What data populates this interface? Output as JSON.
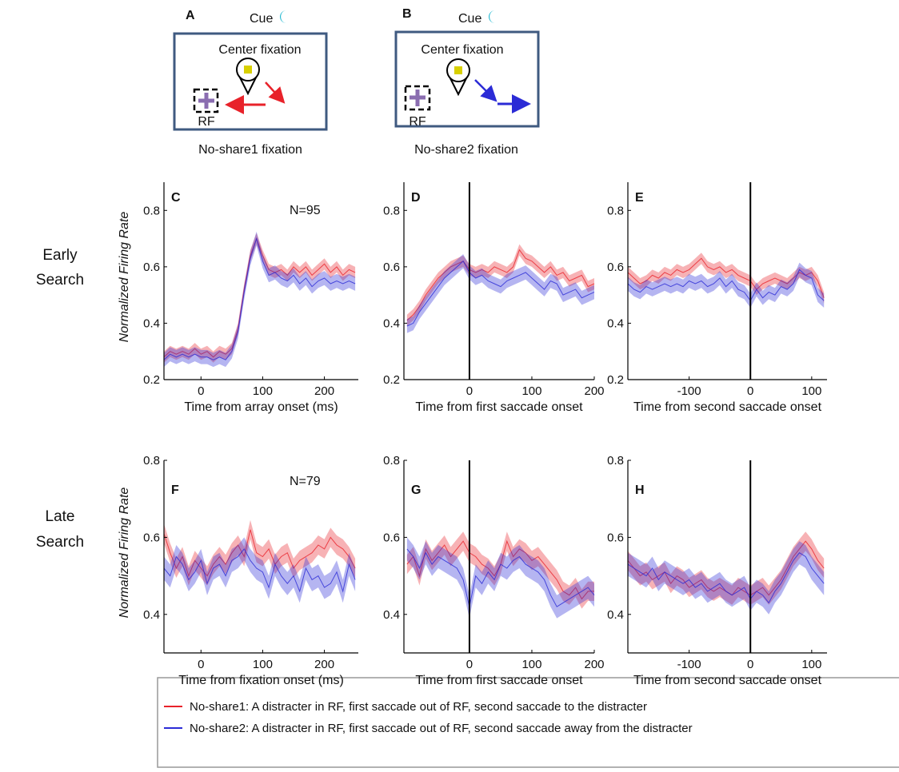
{
  "diagrams": [
    {
      "label": "A",
      "cue": "Cue",
      "center": "Center fixation",
      "rf": "RF",
      "caption": "No-share1 fixation"
    },
    {
      "label": "B",
      "cue": "Cue",
      "center": "Center fixation",
      "rf": "RF",
      "caption": "No-share2 fixation"
    }
  ],
  "row_labels": [
    [
      "Early",
      "Search"
    ],
    [
      "Late",
      "Search"
    ]
  ],
  "legend": [
    {
      "name": "No-share1: A distracter in RF, first saccade out of RF, second saccade to the distracter",
      "color": "#e8222a"
    },
    {
      "name": "No-share2: A distracter in RF, first saccade out of RF, second saccade away from the distracter",
      "color": "#2b2bd6"
    }
  ],
  "chart_data": [
    {
      "type": "line",
      "panel_label": "C",
      "annotation": "N=95",
      "ylabel": "Normalized Firing Rate",
      "xlabel": "Time from array onset (ms)",
      "xlim": [
        -60,
        255
      ],
      "ylim": [
        0.2,
        0.9
      ],
      "xticks": [
        0,
        100,
        200
      ],
      "yticks": [
        0.2,
        0.4,
        0.6,
        0.8
      ],
      "zero_line": false,
      "x": [
        -60,
        -50,
        -40,
        -30,
        -20,
        -10,
        0,
        10,
        20,
        30,
        40,
        50,
        60,
        70,
        80,
        90,
        100,
        110,
        120,
        130,
        140,
        150,
        160,
        170,
        180,
        190,
        200,
        210,
        220,
        230,
        240,
        250
      ],
      "series": [
        {
          "color": "#e8222a",
          "error": 0.02,
          "values": [
            0.28,
            0.3,
            0.29,
            0.3,
            0.29,
            0.31,
            0.29,
            0.3,
            0.28,
            0.3,
            0.29,
            0.31,
            0.38,
            0.52,
            0.64,
            0.7,
            0.64,
            0.59,
            0.58,
            0.59,
            0.57,
            0.6,
            0.58,
            0.6,
            0.57,
            0.59,
            0.61,
            0.58,
            0.6,
            0.57,
            0.59,
            0.58
          ]
        },
        {
          "color": "#2b2bd6",
          "error": 0.025,
          "values": [
            0.27,
            0.29,
            0.28,
            0.29,
            0.28,
            0.29,
            0.28,
            0.28,
            0.27,
            0.28,
            0.27,
            0.3,
            0.37,
            0.51,
            0.63,
            0.7,
            0.62,
            0.57,
            0.58,
            0.56,
            0.55,
            0.57,
            0.54,
            0.56,
            0.53,
            0.55,
            0.56,
            0.54,
            0.55,
            0.54,
            0.55,
            0.54
          ]
        }
      ]
    },
    {
      "type": "line",
      "panel_label": "D",
      "xlabel": "Time from first saccade onset",
      "xlim": [
        -105,
        200
      ],
      "ylim": [
        0.2,
        0.9
      ],
      "xticks": [
        0,
        100,
        200
      ],
      "yticks": [
        0.2,
        0.4,
        0.6,
        0.8
      ],
      "zero_line": true,
      "x": [
        -100,
        -90,
        -80,
        -70,
        -60,
        -50,
        -40,
        -30,
        -20,
        -10,
        0,
        10,
        20,
        30,
        40,
        50,
        60,
        70,
        80,
        90,
        100,
        110,
        120,
        130,
        140,
        150,
        160,
        170,
        180,
        190,
        200
      ],
      "series": [
        {
          "color": "#e8222a",
          "error": 0.02,
          "values": [
            0.41,
            0.43,
            0.46,
            0.5,
            0.53,
            0.56,
            0.58,
            0.6,
            0.61,
            0.62,
            0.59,
            0.58,
            0.59,
            0.58,
            0.6,
            0.59,
            0.58,
            0.6,
            0.66,
            0.63,
            0.62,
            0.6,
            0.58,
            0.6,
            0.57,
            0.58,
            0.55,
            0.56,
            0.57,
            0.53,
            0.54
          ]
        },
        {
          "color": "#2b2bd6",
          "error": 0.025,
          "values": [
            0.39,
            0.4,
            0.44,
            0.47,
            0.5,
            0.53,
            0.56,
            0.58,
            0.6,
            0.62,
            0.58,
            0.56,
            0.57,
            0.55,
            0.54,
            0.53,
            0.55,
            0.56,
            0.57,
            0.58,
            0.56,
            0.54,
            0.52,
            0.55,
            0.54,
            0.5,
            0.51,
            0.52,
            0.49,
            0.5,
            0.51
          ]
        }
      ]
    },
    {
      "type": "line",
      "panel_label": "E",
      "xlabel": "Time from second saccade onset",
      "xlim": [
        -200,
        125
      ],
      "ylim": [
        0.2,
        0.9
      ],
      "xticks": [
        -100,
        0,
        100
      ],
      "yticks": [
        0.2,
        0.4,
        0.6,
        0.8
      ],
      "zero_line": true,
      "x": [
        -200,
        -190,
        -180,
        -170,
        -160,
        -150,
        -140,
        -130,
        -120,
        -110,
        -100,
        -90,
        -80,
        -70,
        -60,
        -50,
        -40,
        -30,
        -20,
        -10,
        0,
        10,
        20,
        30,
        40,
        50,
        60,
        70,
        80,
        90,
        100,
        110,
        120
      ],
      "series": [
        {
          "color": "#e8222a",
          "error": 0.02,
          "values": [
            0.58,
            0.56,
            0.54,
            0.55,
            0.57,
            0.56,
            0.58,
            0.57,
            0.59,
            0.58,
            0.59,
            0.61,
            0.63,
            0.6,
            0.59,
            0.6,
            0.58,
            0.59,
            0.57,
            0.56,
            0.55,
            0.52,
            0.54,
            0.55,
            0.56,
            0.55,
            0.54,
            0.56,
            0.58,
            0.57,
            0.58,
            0.55,
            0.49
          ]
        },
        {
          "color": "#2b2bd6",
          "error": 0.025,
          "values": [
            0.54,
            0.52,
            0.51,
            0.53,
            0.52,
            0.53,
            0.54,
            0.53,
            0.54,
            0.53,
            0.55,
            0.54,
            0.55,
            0.53,
            0.54,
            0.56,
            0.53,
            0.55,
            0.52,
            0.51,
            0.48,
            0.52,
            0.49,
            0.51,
            0.5,
            0.53,
            0.52,
            0.54,
            0.59,
            0.57,
            0.56,
            0.5,
            0.48
          ]
        }
      ]
    },
    {
      "type": "line",
      "panel_label": "F",
      "annotation": "N=79",
      "ylabel": "Normalized Firing Rate",
      "xlabel": "Time from fixation onset (ms)",
      "xlim": [
        -60,
        255
      ],
      "ylim": [
        0.3,
        0.8
      ],
      "xticks": [
        0,
        100,
        200
      ],
      "yticks": [
        0.4,
        0.6,
        0.8
      ],
      "zero_line": false,
      "x": [
        -60,
        -50,
        -40,
        -30,
        -20,
        -10,
        0,
        10,
        20,
        30,
        40,
        50,
        60,
        70,
        80,
        90,
        100,
        110,
        120,
        130,
        140,
        150,
        160,
        170,
        180,
        190,
        200,
        210,
        220,
        230,
        240,
        250
      ],
      "series": [
        {
          "color": "#e8222a",
          "error": 0.025,
          "values": [
            0.61,
            0.56,
            0.52,
            0.55,
            0.5,
            0.54,
            0.52,
            0.5,
            0.53,
            0.55,
            0.53,
            0.56,
            0.58,
            0.55,
            0.62,
            0.56,
            0.55,
            0.57,
            0.53,
            0.55,
            0.56,
            0.52,
            0.54,
            0.55,
            0.56,
            0.58,
            0.57,
            0.6,
            0.58,
            0.57,
            0.55,
            0.52
          ]
        },
        {
          "color": "#2b2bd6",
          "error": 0.03,
          "values": [
            0.52,
            0.5,
            0.55,
            0.53,
            0.49,
            0.51,
            0.54,
            0.48,
            0.52,
            0.53,
            0.5,
            0.54,
            0.55,
            0.57,
            0.54,
            0.52,
            0.51,
            0.47,
            0.53,
            0.5,
            0.48,
            0.5,
            0.46,
            0.52,
            0.49,
            0.5,
            0.47,
            0.48,
            0.51,
            0.46,
            0.53,
            0.49
          ]
        }
      ]
    },
    {
      "type": "line",
      "panel_label": "G",
      "xlabel": "Time from first saccade onset",
      "xlim": [
        -105,
        200
      ],
      "ylim": [
        0.3,
        0.8
      ],
      "xticks": [
        0,
        100,
        200
      ],
      "yticks": [
        0.4,
        0.6,
        0.8
      ],
      "zero_line": true,
      "x": [
        -100,
        -90,
        -80,
        -70,
        -60,
        -50,
        -40,
        -30,
        -20,
        -10,
        0,
        10,
        20,
        30,
        40,
        50,
        60,
        70,
        80,
        90,
        100,
        110,
        120,
        130,
        140,
        150,
        160,
        170,
        180,
        190,
        200
      ],
      "series": [
        {
          "color": "#e8222a",
          "error": 0.025,
          "values": [
            0.53,
            0.55,
            0.5,
            0.57,
            0.54,
            0.56,
            0.58,
            0.55,
            0.57,
            0.59,
            0.56,
            0.55,
            0.53,
            0.52,
            0.5,
            0.53,
            0.59,
            0.55,
            0.57,
            0.56,
            0.54,
            0.55,
            0.53,
            0.51,
            0.49,
            0.46,
            0.45,
            0.47,
            0.44,
            0.46,
            0.46
          ]
        },
        {
          "color": "#2b2bd6",
          "error": 0.03,
          "values": [
            0.57,
            0.55,
            0.52,
            0.56,
            0.53,
            0.55,
            0.54,
            0.53,
            0.52,
            0.49,
            0.42,
            0.5,
            0.48,
            0.51,
            0.49,
            0.53,
            0.52,
            0.54,
            0.55,
            0.53,
            0.52,
            0.51,
            0.49,
            0.45,
            0.42,
            0.43,
            0.44,
            0.45,
            0.46,
            0.47,
            0.45
          ]
        }
      ]
    },
    {
      "type": "line",
      "panel_label": "H",
      "xlabel": "Time from second saccade onset",
      "xlim": [
        -200,
        125
      ],
      "ylim": [
        0.3,
        0.8
      ],
      "xticks": [
        -100,
        0,
        100
      ],
      "yticks": [
        0.4,
        0.6,
        0.8
      ],
      "zero_line": true,
      "x": [
        -200,
        -190,
        -180,
        -170,
        -160,
        -150,
        -140,
        -130,
        -120,
        -110,
        -100,
        -90,
        -80,
        -70,
        -60,
        -50,
        -40,
        -30,
        -20,
        -10,
        0,
        10,
        20,
        30,
        40,
        50,
        60,
        70,
        80,
        90,
        100,
        110,
        120
      ],
      "series": [
        {
          "color": "#e8222a",
          "error": 0.025,
          "values": [
            0.54,
            0.52,
            0.5,
            0.51,
            0.49,
            0.5,
            0.51,
            0.48,
            0.5,
            0.49,
            0.47,
            0.48,
            0.49,
            0.47,
            0.46,
            0.47,
            0.46,
            0.45,
            0.47,
            0.46,
            0.45,
            0.46,
            0.47,
            0.45,
            0.47,
            0.49,
            0.52,
            0.55,
            0.57,
            0.59,
            0.57,
            0.54,
            0.52
          ]
        },
        {
          "color": "#2b2bd6",
          "error": 0.03,
          "values": [
            0.53,
            0.52,
            0.51,
            0.5,
            0.52,
            0.49,
            0.51,
            0.5,
            0.49,
            0.48,
            0.49,
            0.47,
            0.48,
            0.46,
            0.47,
            0.48,
            0.46,
            0.45,
            0.46,
            0.47,
            0.44,
            0.46,
            0.45,
            0.43,
            0.46,
            0.48,
            0.51,
            0.54,
            0.56,
            0.55,
            0.52,
            0.5,
            0.48
          ]
        }
      ]
    }
  ]
}
